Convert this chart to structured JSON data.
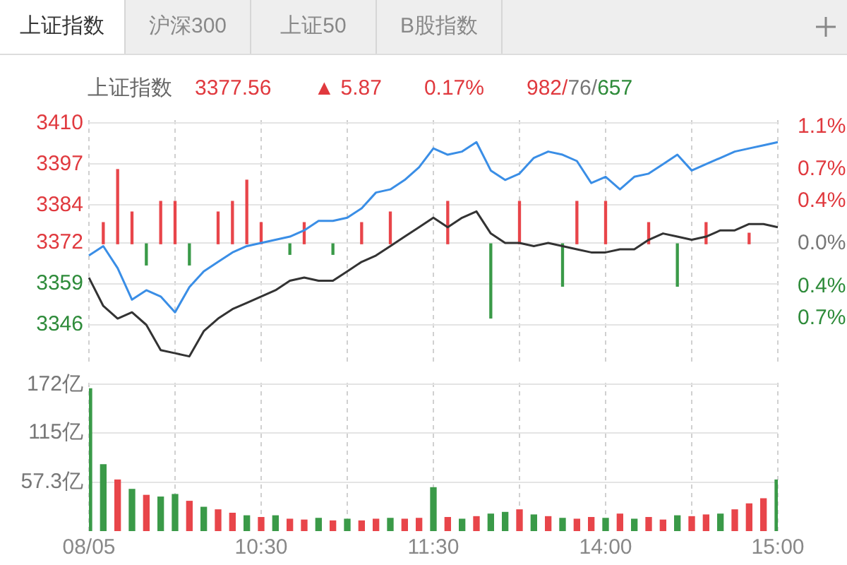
{
  "chart_data": [
    {
      "type": "line",
      "title": "上证指数",
      "annotations": [
        "上证指数",
        "沪深300",
        "上证50",
        "B股指数",
        "3377.56",
        "▲ 5.87",
        "0.17%",
        "982/76/657"
      ],
      "categories": [
        null,
        null,
        null,
        null,
        null,
        null,
        null,
        null,
        null,
        null,
        null,
        null,
        null,
        null,
        null,
        null,
        null,
        null,
        null,
        null,
        null,
        null,
        null,
        null,
        null,
        null,
        null,
        null,
        null,
        null,
        null,
        null,
        null,
        null,
        null,
        null,
        null,
        null,
        null,
        null,
        null,
        null,
        null,
        null,
        null,
        null,
        null,
        null,
        null
      ],
      "series": [
        {
          "color": "#3a8ee6",
          "values": [
            3368,
            3371,
            3364,
            3354,
            3357,
            3355,
            3350,
            3358,
            3363,
            3366,
            3369,
            3371,
            3372,
            3373,
            3374,
            3376,
            3379,
            3379,
            3380,
            3383,
            3388,
            3389,
            3392,
            3396,
            3402,
            3400,
            3401,
            3404,
            3395,
            3392,
            3394,
            3399,
            3401,
            3400,
            3398,
            3391,
            3393,
            3389,
            3393,
            3394,
            3397,
            3400,
            3395,
            3397,
            3399,
            3401,
            3402,
            3403,
            3404
          ]
        },
        {
          "color": "#333333",
          "values": [
            3361,
            3352,
            3348,
            3350,
            3346,
            3338,
            3337,
            3336,
            3344,
            3348,
            3351,
            3353,
            3355,
            3357,
            3360,
            3361,
            3360,
            3360,
            3363,
            3366,
            3368,
            3371,
            3374,
            3377,
            3380,
            3377,
            3380,
            3382,
            3375,
            3372,
            3372,
            3371,
            3372,
            3371,
            3370,
            3369,
            3369,
            3370,
            3370,
            3373,
            3375,
            3374,
            3373,
            3374,
            3376,
            3376,
            3378,
            3378,
            3377
          ]
        },
        {
          "type": "bar",
          "axis": "y2",
          "values": [
            null,
            0.2,
            0.7,
            0.3,
            -0.2,
            0.4,
            0.4,
            -0.2,
            null,
            0.3,
            0.4,
            0.6,
            0.2,
            null,
            -0.1,
            0.2,
            null,
            -0.1,
            null,
            0.2,
            null,
            0.3,
            null,
            null,
            null,
            0.4,
            null,
            null,
            -0.7,
            null,
            0.4,
            null,
            null,
            -0.4,
            0.4,
            null,
            0.4,
            null,
            null,
            0.2,
            null,
            -0.4,
            null,
            0.2,
            null,
            null,
            0.1,
            null,
            null
          ],
          "colors": [
            "#e8454a",
            "#e8454a",
            "#e8454a",
            "#e8454a",
            "#3a9a48",
            "#e8454a",
            "#e8454a",
            "#3a9a48",
            "#e8454a",
            "#e8454a",
            "#e8454a",
            "#e8454a",
            "#e8454a",
            "#e8454a",
            "#3a9a48",
            "#e8454a",
            "#e8454a",
            "#3a9a48",
            "#e8454a",
            "#e8454a",
            "#e8454a",
            "#e8454a",
            "#e8454a",
            "#e8454a",
            "#e8454a",
            "#e8454a",
            "#e8454a",
            "#e8454a",
            "#3a9a48",
            "#e8454a",
            "#e8454a",
            "#e8454a",
            "#e8454a",
            "#3a9a48",
            "#e8454a",
            "#e8454a",
            "#e8454a",
            "#e8454a",
            "#e8454a",
            "#e8454a",
            "#e8454a",
            "#3a9a48",
            "#e8454a",
            "#e8454a",
            "#e8454a",
            "#e8454a",
            "#e8454a",
            "#e8454a",
            "#e8454a"
          ]
        }
      ],
      "ylim": [
        3333,
        3411
      ],
      "yticks": [
        3410,
        3397,
        3384,
        3372,
        3359,
        3346
      ],
      "y2lim": [
        -1.15,
        1.166
      ],
      "y2ticks": [
        {
          "value": 1.1,
          "label": "1.1%"
        },
        {
          "value": 0.7,
          "label": "0.7%"
        },
        {
          "value": 0.4,
          "label": "0.4%"
        },
        {
          "value": 0,
          "label": "0.0%"
        },
        {
          "value": -0.4,
          "label": "0.4%"
        },
        {
          "value": -0.7,
          "label": "0.7%"
        }
      ],
      "tick_labels": "y",
      "grid": true,
      "legend": false
    },
    {
      "type": "bar",
      "categories": [
        "08/05",
        null,
        null,
        null,
        null,
        null,
        null,
        null,
        null,
        null,
        null,
        null,
        "10:30",
        null,
        null,
        null,
        null,
        null,
        null,
        null,
        null,
        null,
        null,
        null,
        "11:30",
        null,
        null,
        null,
        null,
        null,
        null,
        null,
        null,
        null,
        null,
        null,
        "14:00",
        null,
        null,
        null,
        null,
        null,
        null,
        null,
        null,
        null,
        null,
        null,
        "15:00"
      ],
      "values": [
        167,
        78,
        60,
        49,
        42,
        40,
        43,
        35,
        28,
        25,
        21,
        18,
        16,
        18,
        14,
        13,
        15,
        12,
        14,
        12,
        14,
        15,
        14,
        15,
        51,
        16,
        14,
        17,
        20,
        22,
        25,
        19,
        17,
        15,
        14,
        16,
        15,
        20,
        14,
        16,
        13,
        18,
        17,
        19,
        20,
        25,
        32,
        38,
        60
      ],
      "colors": [
        "#3a9a48",
        "#3a9a48",
        "#e8454a",
        "#3a9a48",
        "#e8454a",
        "#3a9a48",
        "#3a9a48",
        "#e8454a",
        "#3a9a48",
        "#e8454a",
        "#e8454a",
        "#3a9a48",
        "#e8454a",
        "#3a9a48",
        "#e8454a",
        "#e8454a",
        "#3a9a48",
        "#e8454a",
        "#3a9a48",
        "#e8454a",
        "#e8454a",
        "#3a9a48",
        "#e8454a",
        "#e8454a",
        "#3a9a48",
        "#e8454a",
        "#3a9a48",
        "#e8454a",
        "#3a9a48",
        "#3a9a48",
        "#e8454a",
        "#3a9a48",
        "#e8454a",
        "#3a9a48",
        "#e8454a",
        "#e8454a",
        "#3a9a48",
        "#e8454a",
        "#3a9a48",
        "#e8454a",
        "#e8454a",
        "#3a9a48",
        "#e8454a",
        "#e8454a",
        "#3a9a48",
        "#e8454a",
        "#e8454a",
        "#e8454a",
        "#3a9a48"
      ],
      "ylim": [
        0,
        174
      ],
      "yticks": [
        {
          "value": 172,
          "label": "172亿"
        },
        {
          "value": 115,
          "label": "115亿"
        },
        {
          "value": 57.3,
          "label": "57.3亿"
        }
      ],
      "grid": true,
      "legend": false
    }
  ]
}
